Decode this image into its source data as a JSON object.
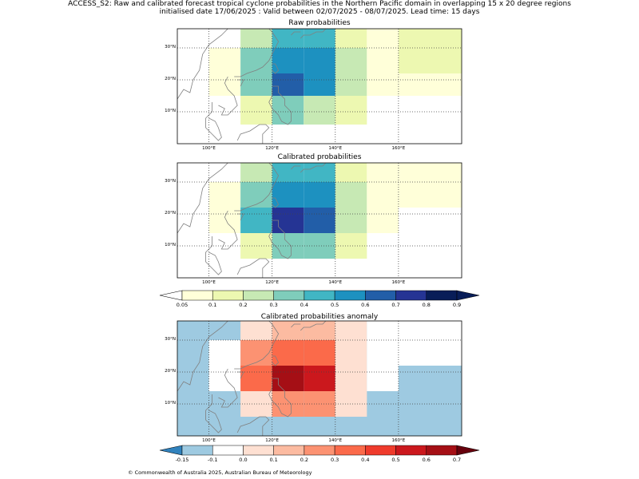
{
  "header": {
    "line1": "ACCESS_S2: Raw and calibrated forecast tropical cyclone probabilities in the Northern Pacific domain in overlapping 15 x 20 degree regions",
    "line2": "initialised date 17/06/2025 :  Valid between 02/07/2025 - 08/07/2025. Lead time: 15 days"
  },
  "map": {
    "lon_range": [
      90,
      180
    ],
    "lat_range": [
      0,
      36
    ],
    "lon_ticks": [
      "100°E",
      "120°E",
      "140°E",
      "160°E"
    ],
    "lat_ticks": [
      "10°N",
      "20°N",
      "30°N"
    ],
    "coast_color": "#808080"
  },
  "panels": [
    {
      "id": "raw",
      "title": "Raw probabilities",
      "scale": "prob",
      "cells": [
        {
          "lon": [
            110,
            120
          ],
          "lat": [
            30,
            36
          ],
          "value": 0.2
        },
        {
          "lon": [
            120,
            130
          ],
          "lat": [
            30,
            36
          ],
          "value": 0.4
        },
        {
          "lon": [
            130,
            140
          ],
          "lat": [
            30,
            36
          ],
          "value": 0.4
        },
        {
          "lon": [
            140,
            150
          ],
          "lat": [
            30,
            36
          ],
          "value": 0.1
        },
        {
          "lon": [
            150,
            160
          ],
          "lat": [
            30,
            36
          ],
          "value": 0.05
        },
        {
          "lon": [
            160,
            180
          ],
          "lat": [
            30,
            36
          ],
          "value": 0.1
        },
        {
          "lon": [
            100,
            110
          ],
          "lat": [
            22,
            30
          ],
          "value": 0.05
        },
        {
          "lon": [
            110,
            120
          ],
          "lat": [
            22,
            30
          ],
          "value": 0.3
        },
        {
          "lon": [
            120,
            130
          ],
          "lat": [
            22,
            30
          ],
          "value": 0.5
        },
        {
          "lon": [
            130,
            140
          ],
          "lat": [
            22,
            30
          ],
          "value": 0.5
        },
        {
          "lon": [
            140,
            150
          ],
          "lat": [
            22,
            30
          ],
          "value": 0.2
        },
        {
          "lon": [
            150,
            160
          ],
          "lat": [
            22,
            30
          ],
          "value": 0.05
        },
        {
          "lon": [
            160,
            180
          ],
          "lat": [
            22,
            30
          ],
          "value": 0.1
        },
        {
          "lon": [
            100,
            110
          ],
          "lat": [
            15,
            22
          ],
          "value": 0.05
        },
        {
          "lon": [
            110,
            120
          ],
          "lat": [
            15,
            22
          ],
          "value": 0.3
        },
        {
          "lon": [
            120,
            130
          ],
          "lat": [
            15,
            22
          ],
          "value": 0.6
        },
        {
          "lon": [
            130,
            140
          ],
          "lat": [
            15,
            22
          ],
          "value": 0.5
        },
        {
          "lon": [
            140,
            150
          ],
          "lat": [
            15,
            22
          ],
          "value": 0.2
        },
        {
          "lon": [
            150,
            160
          ],
          "lat": [
            15,
            22
          ],
          "value": 0.05
        },
        {
          "lon": [
            160,
            180
          ],
          "lat": [
            15,
            22
          ],
          "value": 0.05
        },
        {
          "lon": [
            110,
            120
          ],
          "lat": [
            6,
            15
          ],
          "value": 0.1
        },
        {
          "lon": [
            120,
            130
          ],
          "lat": [
            6,
            15
          ],
          "value": 0.3
        },
        {
          "lon": [
            130,
            140
          ],
          "lat": [
            6,
            15
          ],
          "value": 0.2
        },
        {
          "lon": [
            140,
            150
          ],
          "lat": [
            6,
            15
          ],
          "value": 0.1
        }
      ]
    },
    {
      "id": "cal",
      "title": "Calibrated probabilities",
      "scale": "prob",
      "cells": [
        {
          "lon": [
            110,
            120
          ],
          "lat": [
            30,
            36
          ],
          "value": 0.2
        },
        {
          "lon": [
            120,
            130
          ],
          "lat": [
            30,
            36
          ],
          "value": 0.4
        },
        {
          "lon": [
            130,
            140
          ],
          "lat": [
            30,
            36
          ],
          "value": 0.4
        },
        {
          "lon": [
            140,
            150
          ],
          "lat": [
            30,
            36
          ],
          "value": 0.1
        },
        {
          "lon": [
            150,
            160
          ],
          "lat": [
            30,
            36
          ],
          "value": 0.05
        },
        {
          "lon": [
            160,
            180
          ],
          "lat": [
            30,
            36
          ],
          "value": 0.05
        },
        {
          "lon": [
            100,
            110
          ],
          "lat": [
            22,
            30
          ],
          "value": 0.05
        },
        {
          "lon": [
            110,
            120
          ],
          "lat": [
            22,
            30
          ],
          "value": 0.3
        },
        {
          "lon": [
            120,
            130
          ],
          "lat": [
            22,
            30
          ],
          "value": 0.5
        },
        {
          "lon": [
            130,
            140
          ],
          "lat": [
            22,
            30
          ],
          "value": 0.5
        },
        {
          "lon": [
            140,
            150
          ],
          "lat": [
            22,
            30
          ],
          "value": 0.2
        },
        {
          "lon": [
            150,
            160
          ],
          "lat": [
            22,
            30
          ],
          "value": 0.05
        },
        {
          "lon": [
            160,
            180
          ],
          "lat": [
            22,
            30
          ],
          "value": 0.05
        },
        {
          "lon": [
            100,
            110
          ],
          "lat": [
            14,
            22
          ],
          "value": 0.05
        },
        {
          "lon": [
            110,
            120
          ],
          "lat": [
            14,
            22
          ],
          "value": 0.4
        },
        {
          "lon": [
            120,
            130
          ],
          "lat": [
            14,
            22
          ],
          "value": 0.7
        },
        {
          "lon": [
            130,
            140
          ],
          "lat": [
            14,
            22
          ],
          "value": 0.6
        },
        {
          "lon": [
            140,
            150
          ],
          "lat": [
            14,
            22
          ],
          "value": 0.2
        },
        {
          "lon": [
            150,
            160
          ],
          "lat": [
            14,
            22
          ],
          "value": 0.05
        },
        {
          "lon": [
            110,
            120
          ],
          "lat": [
            6,
            14
          ],
          "value": 0.1
        },
        {
          "lon": [
            120,
            130
          ],
          "lat": [
            6,
            14
          ],
          "value": 0.3
        },
        {
          "lon": [
            130,
            140
          ],
          "lat": [
            6,
            14
          ],
          "value": 0.3
        },
        {
          "lon": [
            140,
            150
          ],
          "lat": [
            6,
            14
          ],
          "value": 0.1
        }
      ]
    },
    {
      "id": "anom",
      "title": "Calibrated probabilities anomaly",
      "scale": "anom",
      "cells": [
        {
          "lon": [
            90,
            180
          ],
          "lat": [
            0,
            36
          ],
          "value": -0.15
        },
        {
          "lon": [
            110,
            120
          ],
          "lat": [
            30,
            36
          ],
          "value": 0.0
        },
        {
          "lon": [
            120,
            130
          ],
          "lat": [
            30,
            36
          ],
          "value": 0.1
        },
        {
          "lon": [
            130,
            140
          ],
          "lat": [
            30,
            36
          ],
          "value": 0.1
        },
        {
          "lon": [
            140,
            150
          ],
          "lat": [
            30,
            36
          ],
          "value": 0.0
        },
        {
          "lon": [
            150,
            180
          ],
          "lat": [
            30,
            36
          ],
          "value": -0.1
        },
        {
          "lon": [
            100,
            110
          ],
          "lat": [
            22,
            30
          ],
          "value": -0.1
        },
        {
          "lon": [
            110,
            120
          ],
          "lat": [
            22,
            30
          ],
          "value": 0.2
        },
        {
          "lon": [
            120,
            130
          ],
          "lat": [
            22,
            30
          ],
          "value": 0.3
        },
        {
          "lon": [
            130,
            140
          ],
          "lat": [
            22,
            30
          ],
          "value": 0.3
        },
        {
          "lon": [
            140,
            150
          ],
          "lat": [
            22,
            30
          ],
          "value": 0.0
        },
        {
          "lon": [
            150,
            180
          ],
          "lat": [
            22,
            30
          ],
          "value": -0.1
        },
        {
          "lon": [
            100,
            110
          ],
          "lat": [
            14,
            22
          ],
          "value": -0.1
        },
        {
          "lon": [
            110,
            120
          ],
          "lat": [
            14,
            22
          ],
          "value": 0.3
        },
        {
          "lon": [
            120,
            130
          ],
          "lat": [
            14,
            22
          ],
          "value": 0.6
        },
        {
          "lon": [
            130,
            140
          ],
          "lat": [
            14,
            22
          ],
          "value": 0.5
        },
        {
          "lon": [
            140,
            150
          ],
          "lat": [
            14,
            22
          ],
          "value": 0.0
        },
        {
          "lon": [
            150,
            160
          ],
          "lat": [
            14,
            22
          ],
          "value": -0.1
        },
        {
          "lon": [
            110,
            120
          ],
          "lat": [
            6,
            14
          ],
          "value": 0.0
        },
        {
          "lon": [
            120,
            130
          ],
          "lat": [
            6,
            14
          ],
          "value": 0.2
        },
        {
          "lon": [
            130,
            140
          ],
          "lat": [
            6,
            14
          ],
          "value": 0.2
        },
        {
          "lon": [
            140,
            150
          ],
          "lat": [
            6,
            14
          ],
          "value": 0.0
        }
      ]
    }
  ],
  "prob_colorbar": {
    "labels": [
      "0.05",
      "0.1",
      "0.2",
      "0.3",
      "0.4",
      "0.5",
      "0.6",
      "0.7",
      "0.8",
      "0.9"
    ],
    "colors": [
      "#ffffd9",
      "#edf8b1",
      "#c7e9b4",
      "#7fcdbb",
      "#41b6c4",
      "#1d91c0",
      "#225ea8",
      "#253494",
      "#081d58"
    ],
    "under": "#ffffff",
    "over": "#081d58"
  },
  "anom_colorbar": {
    "labels": [
      "-0.15",
      "-0.1",
      "0.0",
      "0.1",
      "0.2",
      "0.3",
      "0.4",
      "0.5",
      "0.6",
      "0.7"
    ],
    "colors": [
      "#9ecae1",
      "#ffffff",
      "#fee0d2",
      "#fcbba1",
      "#fc9272",
      "#fb6a4a",
      "#ef3b2c",
      "#cb181d",
      "#a50f15"
    ],
    "under": "#3182bd",
    "over": "#67000d"
  },
  "footer": {
    "copyright": "© Commonwealth of Australia 2025, Australian Bureau of Meteorology"
  }
}
